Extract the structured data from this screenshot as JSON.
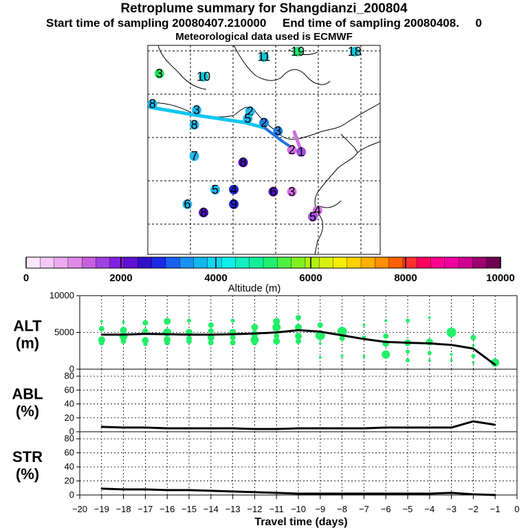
{
  "header": {
    "title": "Retroplume summary for Shangdianzi_200804",
    "sampling_line": "Start time of sampling 20080407.210000     End time of sampling 20080408.     0",
    "met_line": "Meteorological data used is ECMWF"
  },
  "map": {
    "labels": [
      {
        "text": "19",
        "lon": 0.645,
        "lat": 0.03,
        "color": "#1ee87a"
      },
      {
        "text": "11",
        "lon": 0.5,
        "lat": 0.055,
        "color": "#11c6d6"
      },
      {
        "text": "18",
        "lon": 0.89,
        "lat": 0.03,
        "color": "#11c6d6"
      },
      {
        "text": "3",
        "lon": 0.05,
        "lat": 0.135,
        "color": "#22e466"
      },
      {
        "text": "10",
        "lon": 0.24,
        "lat": 0.15,
        "color": "#11c6d6"
      },
      {
        "text": "8",
        "lon": 0.02,
        "lat": 0.28,
        "color": "#1fb8f0"
      },
      {
        "text": "3",
        "lon": 0.21,
        "lat": 0.31,
        "color": "#1fb8f0"
      },
      {
        "text": "2",
        "lon": 0.44,
        "lat": 0.315,
        "color": "#1fb8f0"
      },
      {
        "text": "5",
        "lon": 0.43,
        "lat": 0.35,
        "color": "#1fb8f0"
      },
      {
        "text": "2",
        "lon": 0.5,
        "lat": 0.37,
        "color": "#1f80e0"
      },
      {
        "text": "8",
        "lon": 0.2,
        "lat": 0.38,
        "color": "#1fb8f0"
      },
      {
        "text": "3",
        "lon": 0.56,
        "lat": 0.41,
        "color": "#1f80e0"
      },
      {
        "text": "2",
        "lon": 0.62,
        "lat": 0.5,
        "color": "#d070e0"
      },
      {
        "text": "1",
        "lon": 0.66,
        "lat": 0.51,
        "color": "#a050e0"
      },
      {
        "text": "7",
        "lon": 0.2,
        "lat": 0.53,
        "color": "#1fb8f0"
      },
      {
        "text": "8",
        "lon": 0.41,
        "lat": 0.56,
        "color": "#5010c0"
      },
      {
        "text": "5",
        "lon": 0.29,
        "lat": 0.69,
        "color": "#1fb8f0"
      },
      {
        "text": "4",
        "lon": 0.37,
        "lat": 0.69,
        "color": "#2020d0"
      },
      {
        "text": "6",
        "lon": 0.54,
        "lat": 0.7,
        "color": "#5010c0"
      },
      {
        "text": "3",
        "lon": 0.62,
        "lat": 0.7,
        "color": "#d070e0"
      },
      {
        "text": "6",
        "lon": 0.17,
        "lat": 0.76,
        "color": "#1fb8f0"
      },
      {
        "text": "9",
        "lon": 0.37,
        "lat": 0.76,
        "color": "#2020d0"
      },
      {
        "text": "8",
        "lon": 0.24,
        "lat": 0.8,
        "color": "#5010c0"
      },
      {
        "text": "4",
        "lon": 0.73,
        "lat": 0.79,
        "color": "#d070e0"
      },
      {
        "text": "5",
        "lon": 0.71,
        "lat": 0.82,
        "color": "#a050e0"
      }
    ]
  },
  "colorbar": {
    "tick_labels": [
      "0",
      "2000",
      "4000",
      "6000",
      "8000",
      "10000"
    ],
    "label": "Altitude (m)",
    "colors": [
      "#ffe6ff",
      "#f7c8f7",
      "#eeaaee",
      "#e08ae6",
      "#c860e0",
      "#a040e0",
      "#8020e0",
      "#6010d0",
      "#3010c8",
      "#1a2ae6",
      "#1a60f0",
      "#1a90f0",
      "#10b8f0",
      "#10d8f0",
      "#10f0e8",
      "#10f0c0",
      "#10f09a",
      "#20f070",
      "#50f040",
      "#80f020",
      "#b0f010",
      "#d8f010",
      "#f8f000",
      "#ffd000",
      "#ffb000",
      "#ff9000",
      "#ff6000",
      "#ff3030",
      "#ff0060",
      "#ff0090",
      "#f000a0",
      "#d00090",
      "#a00070",
      "#700050"
    ]
  },
  "chart_data": [
    {
      "type": "line",
      "name": "ALT",
      "ylabel": "ALT\n(m)",
      "ylim": [
        0,
        10000
      ],
      "yticks": [
        0,
        5000,
        10000
      ],
      "x": [
        -19,
        -18,
        -17,
        -16,
        -15,
        -14,
        -13,
        -12,
        -11,
        -10,
        -9,
        -8,
        -7,
        -6,
        -5,
        -4,
        -3,
        -2,
        -1
      ],
      "values": [
        4700,
        4700,
        4800,
        4750,
        4700,
        4700,
        4750,
        4850,
        5000,
        5300,
        5100,
        4600,
        4100,
        3700,
        3600,
        3500,
        3300,
        2800,
        600
      ],
      "scatter_color": "#22ee66",
      "scatter": [
        [
          -19,
          6500,
          2
        ],
        [
          -19,
          5500,
          4
        ],
        [
          -19,
          4000,
          5
        ],
        [
          -19,
          3600,
          4
        ],
        [
          -18,
          6400,
          2
        ],
        [
          -18,
          5300,
          5
        ],
        [
          -18,
          4500,
          6
        ],
        [
          -18,
          3800,
          4
        ],
        [
          -17,
          6300,
          4
        ],
        [
          -17,
          5200,
          4
        ],
        [
          -17,
          3900,
          5
        ],
        [
          -17,
          3400,
          3
        ],
        [
          -16,
          6500,
          5
        ],
        [
          -16,
          5000,
          6
        ],
        [
          -16,
          4000,
          5
        ],
        [
          -16,
          3600,
          4
        ],
        [
          -15,
          6600,
          3
        ],
        [
          -15,
          5000,
          5
        ],
        [
          -15,
          4200,
          4
        ],
        [
          -15,
          3800,
          4
        ],
        [
          -14,
          6000,
          4
        ],
        [
          -14,
          5200,
          4
        ],
        [
          -14,
          4300,
          5
        ],
        [
          -14,
          3600,
          4
        ],
        [
          -13,
          6600,
          3
        ],
        [
          -13,
          5000,
          5
        ],
        [
          -13,
          4300,
          4
        ],
        [
          -13,
          3600,
          4
        ],
        [
          -12,
          5700,
          5
        ],
        [
          -12,
          4800,
          5
        ],
        [
          -12,
          4000,
          6
        ],
        [
          -12,
          3600,
          4
        ],
        [
          -11,
          6500,
          5
        ],
        [
          -11,
          5700,
          6
        ],
        [
          -11,
          4500,
          4
        ],
        [
          -11,
          3800,
          5
        ],
        [
          -10,
          7000,
          4
        ],
        [
          -10,
          5700,
          5
        ],
        [
          -10,
          4500,
          5
        ],
        [
          -10,
          3800,
          4
        ],
        [
          -9,
          6000,
          4
        ],
        [
          -9,
          4600,
          7
        ],
        [
          -9,
          3500,
          2
        ],
        [
          -9,
          1600,
          2
        ],
        [
          -8,
          5100,
          7
        ],
        [
          -8,
          4200,
          4
        ],
        [
          -8,
          1800,
          2
        ],
        [
          -7,
          6000,
          2
        ],
        [
          -7,
          4300,
          3
        ],
        [
          -7,
          1700,
          2
        ],
        [
          -6,
          6600,
          2
        ],
        [
          -6,
          4500,
          4
        ],
        [
          -6,
          3500,
          5
        ],
        [
          -6,
          2000,
          6
        ],
        [
          -5,
          6600,
          3
        ],
        [
          -5,
          3600,
          5
        ],
        [
          -5,
          2400,
          3
        ],
        [
          -5,
          1200,
          3
        ],
        [
          -4,
          7000,
          2
        ],
        [
          -4,
          3700,
          5
        ],
        [
          -4,
          2200,
          3
        ],
        [
          -4,
          1200,
          2
        ],
        [
          -3,
          5000,
          7
        ],
        [
          -3,
          2000,
          2
        ],
        [
          -3,
          1200,
          2
        ],
        [
          -2,
          4300,
          4
        ],
        [
          -2,
          3200,
          2
        ],
        [
          -2,
          1800,
          3
        ],
        [
          -2,
          900,
          2
        ],
        [
          -1,
          900,
          6
        ]
      ]
    },
    {
      "type": "line",
      "name": "ABL",
      "ylabel": "ABL\n(%)",
      "ylim": [
        0,
        90
      ],
      "yticks": [
        0,
        20,
        40,
        60,
        80
      ],
      "x": [
        -19,
        -18,
        -17,
        -16,
        -15,
        -14,
        -13,
        -12,
        -11,
        -10,
        -9,
        -8,
        -7,
        -6,
        -5,
        -4,
        -3,
        -2,
        -1
      ],
      "values": [
        7,
        6,
        6,
        5,
        5,
        5,
        5,
        4,
        4,
        5,
        5,
        5,
        5,
        6,
        6,
        6,
        6,
        15,
        10
      ]
    },
    {
      "type": "line",
      "name": "STR",
      "ylabel": "STR\n(%)",
      "ylim": [
        0,
        90
      ],
      "yticks": [
        0,
        20,
        40,
        60,
        80
      ],
      "x": [
        -19,
        -18,
        -17,
        -16,
        -15,
        -14,
        -13,
        -12,
        -11,
        -10,
        -9,
        -8,
        -7,
        -6,
        -5,
        -4,
        -3,
        -2,
        -1
      ],
      "values": [
        9,
        8,
        8,
        7,
        7,
        6,
        5,
        4,
        3,
        2,
        2,
        2,
        2,
        2,
        2,
        2,
        3,
        1,
        0
      ]
    }
  ],
  "xaxis": {
    "ticks": [
      -20,
      -19,
      -18,
      -17,
      -16,
      -15,
      -14,
      -13,
      -12,
      -11,
      -10,
      -9,
      -8,
      -7,
      -6,
      -5,
      -4,
      -3,
      -2,
      -1,
      0
    ],
    "label": "Travel time (days)"
  }
}
